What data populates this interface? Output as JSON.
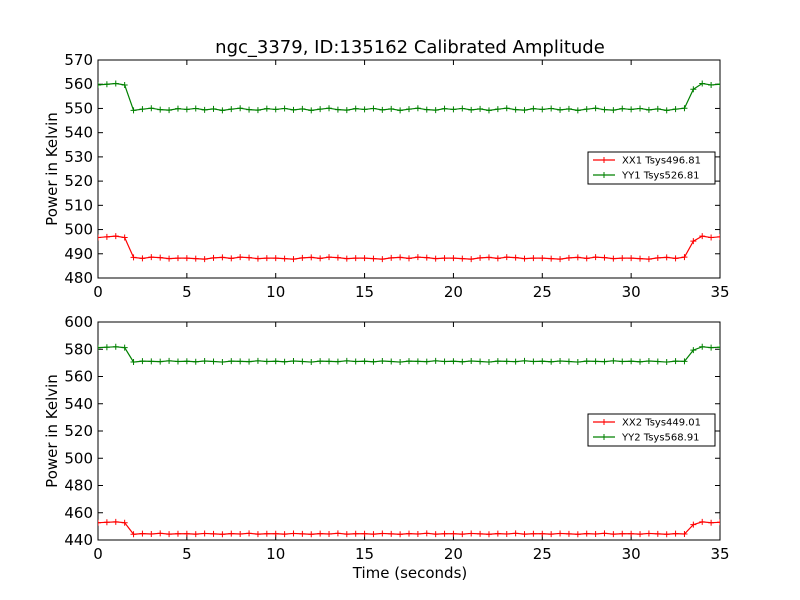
{
  "chart_data": {
    "title": "ngc_3379, ID:135162 Calibrated Amplitude",
    "xlabel": "Time (seconds)",
    "panels": [
      {
        "type": "line",
        "ylabel": "Power in Kelvin",
        "xlim": [
          0,
          35
        ],
        "ylim": [
          480,
          570
        ],
        "xticks": [
          0,
          5,
          10,
          15,
          20,
          25,
          30,
          35
        ],
        "yticks": [
          480,
          490,
          500,
          510,
          520,
          530,
          540,
          550,
          560,
          570
        ],
        "legend": "center-right",
        "series": [
          {
            "name": "XX1 Tsys496.81",
            "color": "#ff0000",
            "high": 497,
            "low": 488,
            "low_values": [
              488.2,
              488.0,
              487.8,
              488.3,
              488.5,
              488.1,
              488.6,
              488.4,
              488.0,
              488.2
            ]
          },
          {
            "name": "YY1 Tsys526.81",
            "color": "#008000",
            "high": 560,
            "low": 549.5,
            "low_values": [
              549.6,
              550.0,
              549.4,
              549.8,
              549.2,
              549.7,
              550.1,
              549.5,
              549.3,
              549.9
            ]
          }
        ]
      },
      {
        "type": "line",
        "ylabel": "Power in Kelvin",
        "xlim": [
          0,
          35
        ],
        "ylim": [
          440,
          600
        ],
        "xticks": [
          0,
          5,
          10,
          15,
          20,
          25,
          30,
          35
        ],
        "yticks": [
          440,
          460,
          480,
          500,
          520,
          540,
          560,
          580,
          600
        ],
        "legend": "center-right",
        "series": [
          {
            "name": "XX2 Tsys449.01",
            "color": "#ff0000",
            "high": 453,
            "low": 444.5,
            "low_values": [
              444.6,
              444.3,
              444.8,
              444.5,
              444.2,
              444.7,
              444.4,
              444.9,
              444.3,
              444.6
            ]
          },
          {
            "name": "YY2 Tsys568.91",
            "color": "#008000",
            "high": 581.5,
            "low": 571,
            "low_values": [
              571.2,
              570.8,
              571.4,
              571.0,
              570.6,
              571.3,
              571.1,
              570.9,
              571.5,
              571.0
            ]
          }
        ]
      }
    ]
  }
}
